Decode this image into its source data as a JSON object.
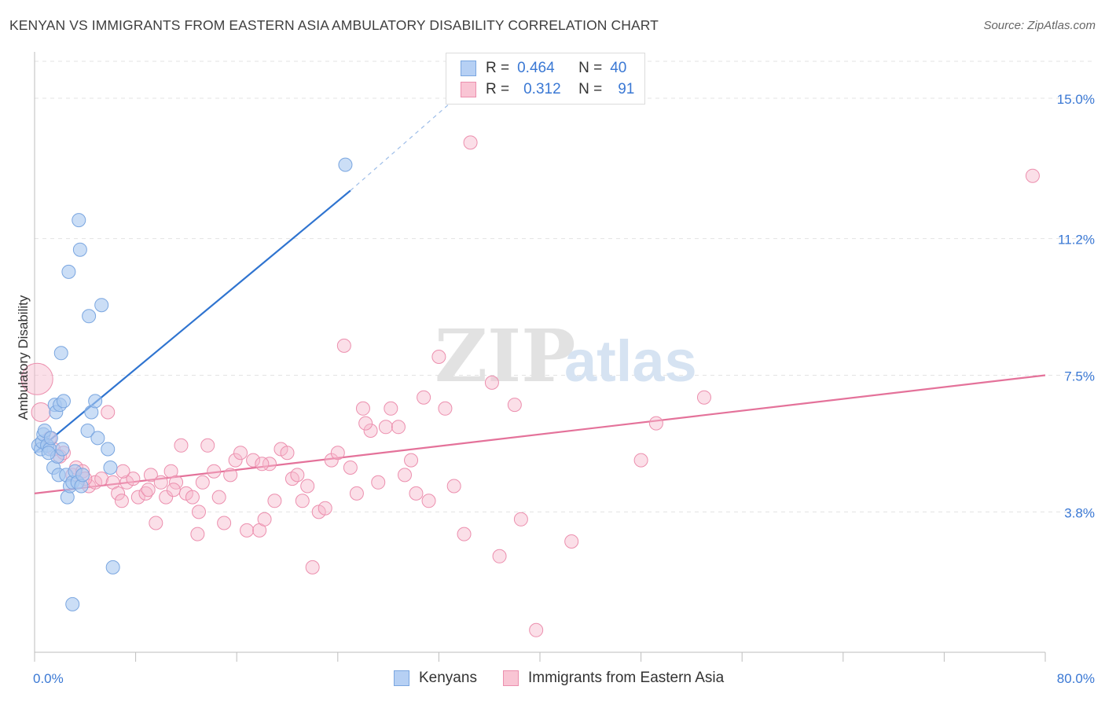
{
  "title": "KENYAN VS IMMIGRANTS FROM EASTERN ASIA AMBULATORY DISABILITY CORRELATION CHART",
  "source": "Source: ZipAtlas.com",
  "watermark": {
    "zip": "ZIP",
    "atlas": "atlas"
  },
  "legend": {
    "rows": [
      {
        "r_label": "R =",
        "r_value": "0.464",
        "n_label": "N =",
        "n_value": "40"
      },
      {
        "r_label": "R =",
        "r_value": "0.312",
        "n_label": "N =",
        "n_value": "91"
      }
    ]
  },
  "bottom_legend": {
    "kenyans": "Kenyans",
    "eastern_asia": "Immigrants from Eastern Asia"
  },
  "colors": {
    "blue_fill": "#a9c8f0",
    "blue_stroke": "#7aa6e0",
    "blue_line": "#2f74d0",
    "pink_fill": "#f7b8cb",
    "pink_stroke": "#ec8fae",
    "pink_line": "#e4729a",
    "axis_text": "#3a78d4",
    "grid": "#e3e3e3"
  },
  "chart_data": {
    "type": "scatter",
    "title": "KENYAN VS IMMIGRANTS FROM EASTERN ASIA AMBULATORY DISABILITY CORRELATION CHART",
    "xlabel": "",
    "ylabel": "Ambulatory Disability",
    "xlim": [
      0,
      80
    ],
    "ylim": [
      0,
      16
    ],
    "x_tick_labels": [
      "0.0%",
      "80.0%"
    ],
    "y_ticks": [
      3.8,
      7.5,
      11.2,
      15.0
    ],
    "y_tick_labels": [
      "3.8%",
      "7.5%",
      "11.2%",
      "15.0%"
    ],
    "grid": "horizontal dashed",
    "legend_position": "top-center",
    "series": [
      {
        "name": "Kenyans",
        "color": "blue",
        "points": [
          [
            0.3,
            5.6
          ],
          [
            0.5,
            5.5
          ],
          [
            0.6,
            5.7
          ],
          [
            0.7,
            5.9
          ],
          [
            0.8,
            6.0
          ],
          [
            1.0,
            5.6
          ],
          [
            1.2,
            5.5
          ],
          [
            1.3,
            5.8
          ],
          [
            1.5,
            5.0
          ],
          [
            1.6,
            6.7
          ],
          [
            1.7,
            6.5
          ],
          [
            1.8,
            5.3
          ],
          [
            1.9,
            4.8
          ],
          [
            2.0,
            6.7
          ],
          [
            2.1,
            8.1
          ],
          [
            2.2,
            5.5
          ],
          [
            2.3,
            6.8
          ],
          [
            2.5,
            4.8
          ],
          [
            2.6,
            4.2
          ],
          [
            2.7,
            10.3
          ],
          [
            2.8,
            4.5
          ],
          [
            3.0,
            4.6
          ],
          [
            3.2,
            4.9
          ],
          [
            3.4,
            4.6
          ],
          [
            3.5,
            11.7
          ],
          [
            3.6,
            10.9
          ],
          [
            3.7,
            4.5
          ],
          [
            3.8,
            4.8
          ],
          [
            4.2,
            6.0
          ],
          [
            4.3,
            9.1
          ],
          [
            4.5,
            6.5
          ],
          [
            4.8,
            6.8
          ],
          [
            5.0,
            5.8
          ],
          [
            5.3,
            9.4
          ],
          [
            5.8,
            5.5
          ],
          [
            6.0,
            5.0
          ],
          [
            6.2,
            2.3
          ],
          [
            3.0,
            1.3
          ],
          [
            24.6,
            13.2
          ],
          [
            1.1,
            5.4
          ]
        ],
        "trend": {
          "x0": 0,
          "y0": 5.4,
          "x1": 25,
          "y1": 12.5,
          "dashed_to_x": 34,
          "dashed_to_y": 15.2
        }
      },
      {
        "name": "Immigrants from Eastern Asia",
        "color": "pink",
        "points": [
          [
            0.2,
            7.4
          ],
          [
            0.5,
            6.5
          ],
          [
            1.2,
            5.8
          ],
          [
            1.5,
            5.5
          ],
          [
            2.0,
            5.3
          ],
          [
            2.3,
            5.4
          ],
          [
            3.0,
            4.8
          ],
          [
            3.3,
            5.0
          ],
          [
            3.8,
            4.9
          ],
          [
            4.3,
            4.5
          ],
          [
            4.8,
            4.6
          ],
          [
            5.3,
            4.7
          ],
          [
            5.8,
            6.5
          ],
          [
            6.2,
            4.6
          ],
          [
            6.6,
            4.3
          ],
          [
            6.9,
            4.1
          ],
          [
            7.3,
            4.6
          ],
          [
            7.8,
            4.7
          ],
          [
            8.2,
            4.2
          ],
          [
            8.8,
            4.3
          ],
          [
            9.2,
            4.8
          ],
          [
            9.6,
            3.5
          ],
          [
            10.0,
            4.6
          ],
          [
            10.4,
            4.2
          ],
          [
            10.8,
            4.9
          ],
          [
            11.2,
            4.6
          ],
          [
            11.6,
            5.6
          ],
          [
            12.0,
            4.3
          ],
          [
            12.5,
            4.2
          ],
          [
            12.9,
            3.2
          ],
          [
            13.3,
            4.6
          ],
          [
            13.7,
            5.6
          ],
          [
            14.2,
            4.9
          ],
          [
            14.6,
            4.2
          ],
          [
            15.0,
            3.5
          ],
          [
            15.5,
            4.8
          ],
          [
            15.9,
            5.2
          ],
          [
            16.3,
            5.4
          ],
          [
            16.8,
            3.3
          ],
          [
            17.3,
            5.2
          ],
          [
            17.8,
            3.3
          ],
          [
            18.2,
            3.6
          ],
          [
            18.6,
            5.1
          ],
          [
            19.0,
            4.1
          ],
          [
            19.5,
            5.5
          ],
          [
            20.0,
            5.4
          ],
          [
            20.4,
            4.7
          ],
          [
            20.8,
            4.8
          ],
          [
            21.2,
            4.1
          ],
          [
            21.6,
            4.5
          ],
          [
            22.0,
            2.3
          ],
          [
            22.5,
            3.8
          ],
          [
            23.0,
            3.9
          ],
          [
            23.5,
            5.2
          ],
          [
            24.0,
            5.4
          ],
          [
            24.5,
            8.3
          ],
          [
            25.0,
            5.0
          ],
          [
            25.5,
            4.3
          ],
          [
            26.0,
            6.6
          ],
          [
            26.6,
            6.0
          ],
          [
            27.2,
            4.6
          ],
          [
            27.8,
            6.1
          ],
          [
            28.2,
            6.6
          ],
          [
            28.8,
            6.1
          ],
          [
            29.3,
            4.8
          ],
          [
            29.8,
            5.2
          ],
          [
            30.2,
            4.3
          ],
          [
            30.8,
            6.9
          ],
          [
            31.2,
            4.1
          ],
          [
            32.0,
            8.0
          ],
          [
            32.5,
            6.6
          ],
          [
            33.2,
            4.5
          ],
          [
            34.0,
            3.2
          ],
          [
            34.5,
            13.8
          ],
          [
            36.2,
            7.3
          ],
          [
            36.8,
            2.6
          ],
          [
            38.0,
            6.7
          ],
          [
            38.5,
            3.6
          ],
          [
            42.5,
            3.0
          ],
          [
            48.0,
            5.2
          ],
          [
            49.2,
            6.2
          ],
          [
            53.0,
            6.9
          ],
          [
            39.7,
            0.6
          ],
          [
            13.0,
            3.8
          ],
          [
            11.0,
            4.4
          ],
          [
            7.0,
            4.9
          ],
          [
            9.0,
            4.4
          ],
          [
            4.0,
            4.7
          ],
          [
            26.2,
            6.2
          ],
          [
            18.0,
            5.1
          ],
          [
            79.0,
            12.9
          ]
        ],
        "trend": {
          "x0": 0,
          "y0": 4.3,
          "x1": 80,
          "y1": 7.5
        }
      }
    ]
  }
}
